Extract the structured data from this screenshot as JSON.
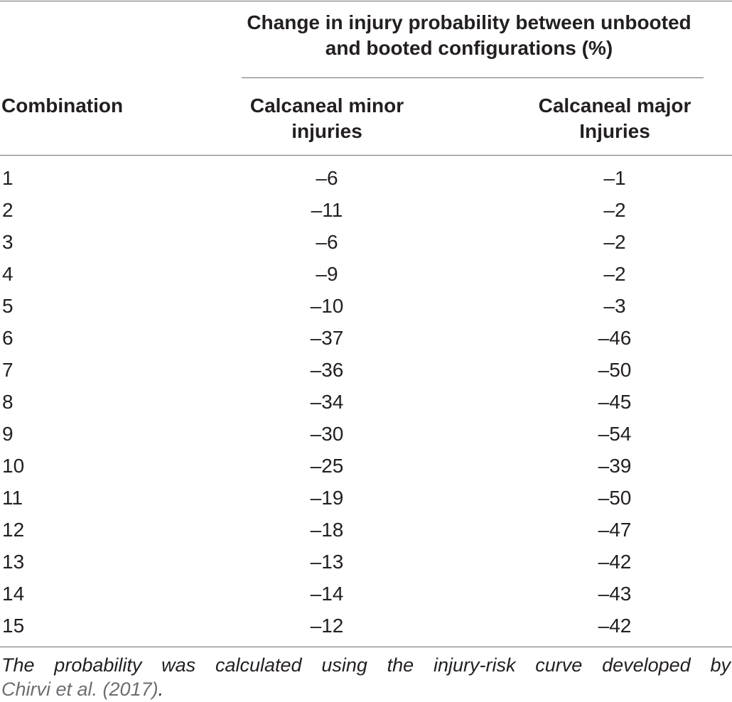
{
  "table": {
    "group_header": {
      "line1": "Change in injury probability between unbooted",
      "line2": "and booted configurations (%)"
    },
    "columns": {
      "combination": "Combination",
      "minor": {
        "line1": "Calcaneal minor",
        "line2": "injuries"
      },
      "major": {
        "line1": "Calcaneal major",
        "line2": "Injuries"
      }
    },
    "rows": [
      {
        "combination": "1",
        "minor": "–6",
        "major": "–1"
      },
      {
        "combination": "2",
        "minor": "–11",
        "major": "–2"
      },
      {
        "combination": "3",
        "minor": "–6",
        "major": "–2"
      },
      {
        "combination": "4",
        "minor": "–9",
        "major": "–2"
      },
      {
        "combination": "5",
        "minor": "–10",
        "major": "–3"
      },
      {
        "combination": "6",
        "minor": "–37",
        "major": "–46"
      },
      {
        "combination": "7",
        "minor": "–36",
        "major": "–50"
      },
      {
        "combination": "8",
        "minor": "–34",
        "major": "–45"
      },
      {
        "combination": "9",
        "minor": "–30",
        "major": "–54"
      },
      {
        "combination": "10",
        "minor": "–25",
        "major": "–39"
      },
      {
        "combination": "11",
        "minor": "–19",
        "major": "–50"
      },
      {
        "combination": "12",
        "minor": "–18",
        "major": "–47"
      },
      {
        "combination": "13",
        "minor": "–13",
        "major": "–42"
      },
      {
        "combination": "14",
        "minor": "–14",
        "major": "–43"
      },
      {
        "combination": "15",
        "minor": "–12",
        "major": "–42"
      }
    ]
  },
  "footnote": {
    "line1": "The probability was calculated using the injury-risk curve developed by",
    "citation": "Chirvi et al. (2017)",
    "period": "."
  }
}
